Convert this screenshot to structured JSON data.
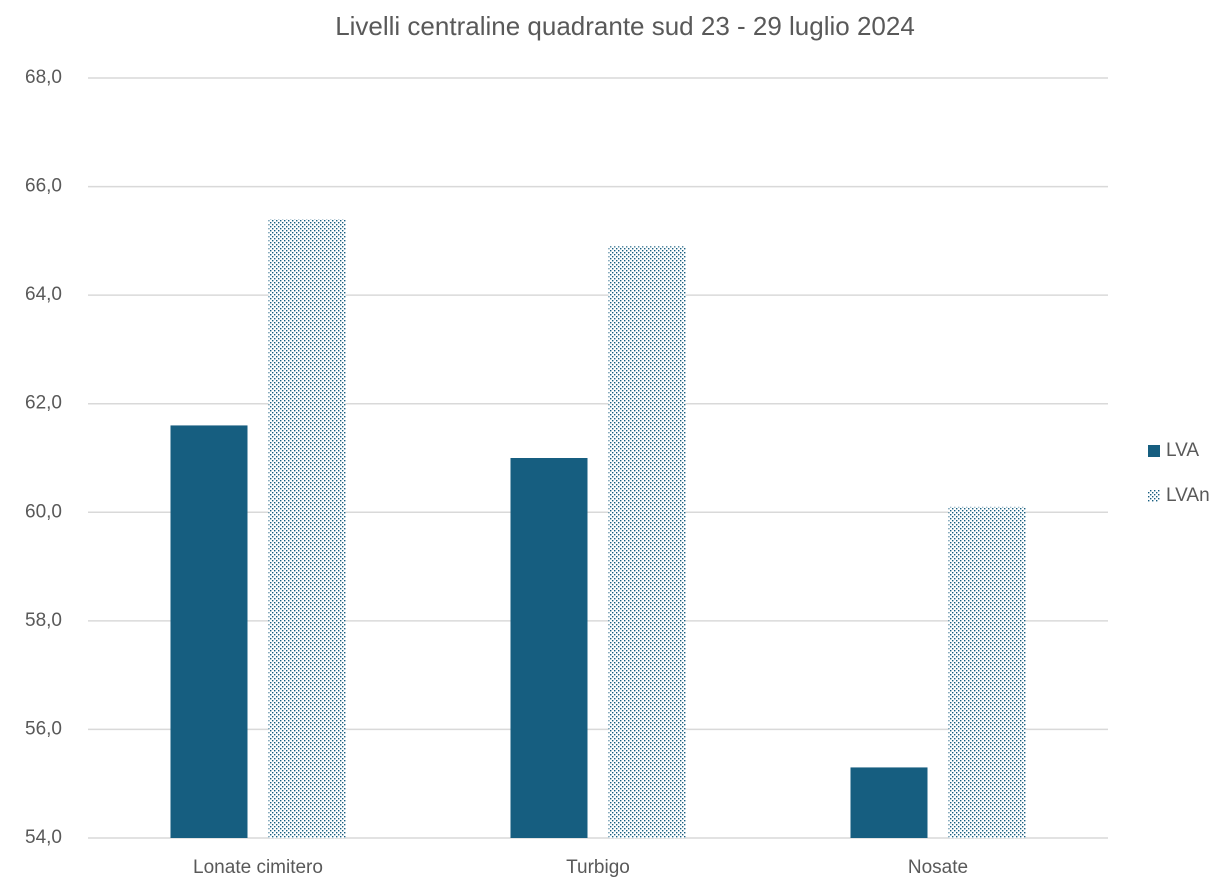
{
  "chart_data": {
    "type": "bar",
    "title": "Livelli centraline quadrante sud 23 - 29 luglio 2024",
    "categories": [
      "Lonate cimitero",
      "Turbigo",
      "Nosate"
    ],
    "series": [
      {
        "name": "LVA",
        "color": "#165e80",
        "fill": "solid",
        "values": [
          61.6,
          61.0,
          55.3
        ]
      },
      {
        "name": "LVAn",
        "color": "#165e80",
        "fill": "dotted",
        "values": [
          65.4,
          64.9,
          60.1
        ]
      }
    ],
    "ylim": [
      54,
      68
    ],
    "yticks": [
      {
        "value": 54,
        "label": "54,0"
      },
      {
        "value": 56,
        "label": "56,0"
      },
      {
        "value": 58,
        "label": "58,0"
      },
      {
        "value": 60,
        "label": "60,0"
      },
      {
        "value": 62,
        "label": "62,0"
      },
      {
        "value": 64,
        "label": "64,0"
      },
      {
        "value": 66,
        "label": "66,0"
      },
      {
        "value": 68,
        "label": "68,0"
      }
    ],
    "grid": true,
    "legend": "right"
  }
}
